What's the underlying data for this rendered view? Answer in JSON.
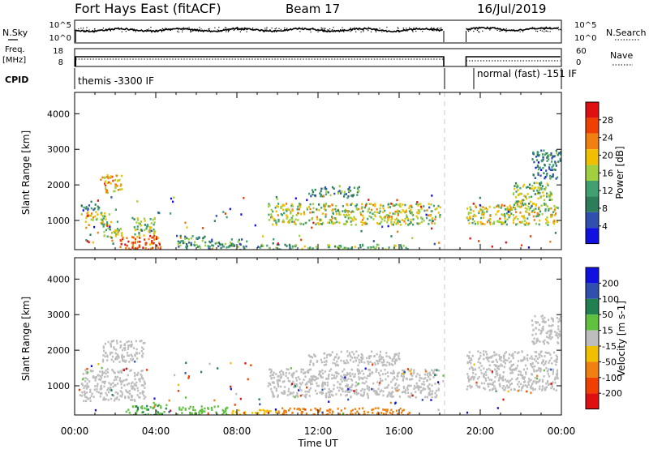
{
  "header": {
    "station": "Fort Hays East (fitACF)",
    "beam": "Beam 17",
    "date": "16/Jul/2019"
  },
  "labels": {
    "nsky": "N.Sky",
    "nsearch": "N.Search",
    "freq_top": "Freq.",
    "freq_unit": "[MHz]",
    "nave": "Nave",
    "cpid": "CPID",
    "top_left_axis": [
      "10^5",
      "10^0"
    ],
    "top_right_axis": [
      "10^5",
      "10^0"
    ],
    "freq_left_axis": [
      "18",
      "8"
    ],
    "freq_right_axis": [
      "60",
      "0"
    ]
  },
  "cpid_segments": [
    {
      "label": "themis -3300 IF"
    },
    {
      "label": "normal (fast) -151 IF"
    }
  ],
  "colors": {
    "power": [
      "#1010e0",
      "#3050b0",
      "#2e7d5a",
      "#40a070",
      "#a0d040",
      "#f0c000",
      "#f08010",
      "#f04000",
      "#e01010"
    ],
    "velocity": [
      "#e01010",
      "#f04000",
      "#f08010",
      "#f0c000",
      "#bdbdbd",
      "#60c040",
      "#208050",
      "#3050b0",
      "#1010e0"
    ],
    "ground": "#bdbdbd",
    "dash": "#c8c8c8"
  },
  "chart_data": [
    {
      "type": "heatmap",
      "name": "power-panel",
      "ylabel": "Slant Range [km]",
      "colorbar_label": "Power [dB]",
      "colorbar_ticks": [
        "4",
        "8",
        "12",
        "16",
        "20",
        "24",
        "28"
      ],
      "x_range_hours": [
        0,
        24
      ],
      "yticks": [
        "1000",
        "2000",
        "3000",
        "4000"
      ],
      "ylim": [
        180,
        4600
      ],
      "data_gap_hours": [
        18.2,
        19.3
      ],
      "regions": [
        {
          "t": [
            0.3,
            1.5
          ],
          "r": [
            950,
            1300
          ],
          "power": 18
        },
        {
          "t": [
            0.3,
            1.3
          ],
          "r": [
            1300,
            1500
          ],
          "power": 8
        },
        {
          "t": [
            1.2,
            2.3
          ],
          "r": [
            1800,
            2300
          ],
          "power": 20
        },
        {
          "t": [
            1.3,
            2.3
          ],
          "r": [
            500,
            1000
          ],
          "power": 16
        },
        {
          "t": [
            2.2,
            4.2
          ],
          "r": [
            180,
            600
          ],
          "power": 26
        },
        {
          "t": [
            2.8,
            4.0
          ],
          "r": [
            600,
            1100
          ],
          "power": 14
        },
        {
          "t": [
            5.0,
            6.5
          ],
          "r": [
            250,
            600
          ],
          "power": 12
        },
        {
          "t": [
            6.5,
            8.5
          ],
          "r": [
            180,
            500
          ],
          "power": 10
        },
        {
          "t": [
            9.0,
            11.0
          ],
          "r": [
            180,
            400
          ],
          "power": 12
        },
        {
          "t": [
            9.5,
            18.0
          ],
          "r": [
            900,
            1500
          ],
          "power": 17
        },
        {
          "t": [
            11.5,
            14.0
          ],
          "r": [
            1700,
            2000
          ],
          "power": 10
        },
        {
          "t": [
            11.0,
            16.5
          ],
          "r": [
            180,
            350
          ],
          "power": 14
        },
        {
          "t": [
            19.3,
            23.8
          ],
          "r": [
            900,
            1500
          ],
          "power": 17
        },
        {
          "t": [
            21.5,
            23.5
          ],
          "r": [
            1500,
            2100
          ],
          "power": 15
        },
        {
          "t": [
            22.5,
            24.0
          ],
          "r": [
            2200,
            3000
          ],
          "power": 9
        }
      ]
    },
    {
      "type": "heatmap",
      "name": "velocity-panel",
      "ylabel": "Slant Range [km]",
      "colorbar_label": "Velocity [m s-1]",
      "colorbar_ticks": [
        "-200",
        "-100",
        "-50",
        "-15",
        "15",
        "50",
        "100",
        "200"
      ],
      "x_range_hours": [
        0,
        24
      ],
      "xticks": [
        "00:00",
        "04:00",
        "08:00",
        "12:00",
        "16:00",
        "20:00",
        "00:00"
      ],
      "xlabel": "Time UT",
      "yticks": [
        "1000",
        "2000",
        "3000",
        "4000"
      ],
      "ylim": [
        180,
        4600
      ],
      "data_gap_hours": [
        18.2,
        19.3
      ],
      "regions": [
        {
          "t": [
            0.3,
            3.5
          ],
          "r": [
            600,
            1500
          ],
          "velocity": 0
        },
        {
          "t": [
            1.3,
            3.5
          ],
          "r": [
            1700,
            2300
          ],
          "velocity": 0
        },
        {
          "t": [
            2.5,
            4.5
          ],
          "r": [
            180,
            500
          ],
          "velocity": 40
        },
        {
          "t": [
            5.0,
            7.5
          ],
          "r": [
            180,
            450
          ],
          "velocity": 35
        },
        {
          "t": [
            7.5,
            10.0
          ],
          "r": [
            180,
            350
          ],
          "velocity": -30
        },
        {
          "t": [
            9.5,
            18.0
          ],
          "r": [
            700,
            1500
          ],
          "velocity": 0
        },
        {
          "t": [
            11.5,
            16.0
          ],
          "r": [
            1600,
            2000
          ],
          "velocity": 0
        },
        {
          "t": [
            10.0,
            16.5
          ],
          "r": [
            180,
            400
          ],
          "velocity": -70
        },
        {
          "t": [
            19.3,
            23.8
          ],
          "r": [
            900,
            2000
          ],
          "velocity": 0
        },
        {
          "t": [
            22.5,
            24.0
          ],
          "r": [
            2200,
            3000
          ],
          "velocity": 0
        }
      ]
    }
  ]
}
